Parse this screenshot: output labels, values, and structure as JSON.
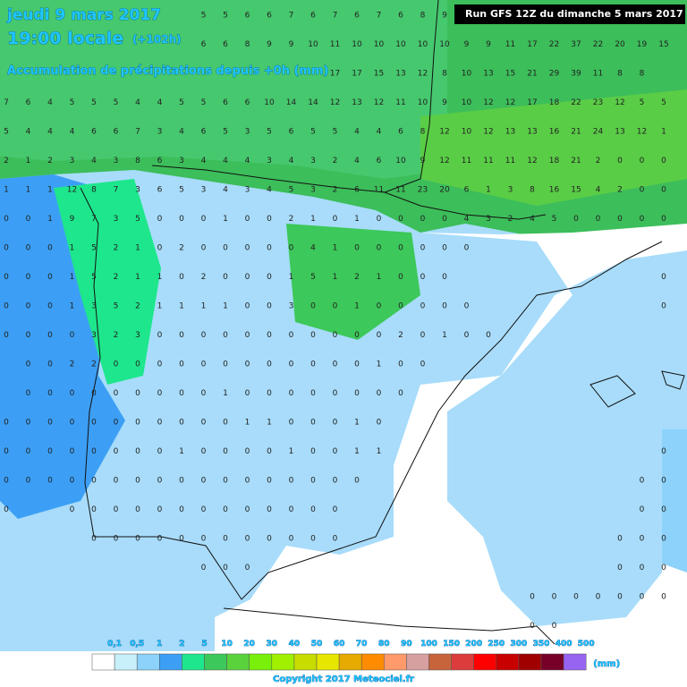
{
  "header": {
    "date": "jeudi 9 mars 2017",
    "time": "19:00 locale",
    "lead": "(+102h)",
    "subtitle": "Accumulation de précipitations depuis +0h (mm)",
    "run": "Run GFS 12Z du dimanche 5 mars 2017"
  },
  "grid_values": [
    [
      null,
      null,
      null,
      null,
      null,
      null,
      null,
      null,
      null,
      5,
      5,
      6,
      6,
      7,
      6,
      7,
      6,
      7,
      6,
      8,
      9,
      null,
      null,
      null,
      null,
      null,
      null,
      null,
      null,
      null,
      null
    ],
    [
      null,
      null,
      null,
      null,
      null,
      null,
      null,
      null,
      null,
      6,
      6,
      8,
      9,
      9,
      10,
      11,
      10,
      10,
      10,
      10,
      10,
      9,
      9,
      11,
      17,
      22,
      37,
      22,
      20,
      19,
      15
    ],
    [
      null,
      null,
      null,
      null,
      null,
      null,
      null,
      null,
      null,
      null,
      null,
      null,
      null,
      null,
      null,
      17,
      17,
      15,
      13,
      12,
      8,
      10,
      13,
      15,
      21,
      29,
      39,
      11,
      8,
      8,
      null
    ],
    [
      7,
      6,
      4,
      5,
      5,
      5,
      4,
      4,
      5,
      5,
      6,
      6,
      10,
      14,
      14,
      12,
      13,
      12,
      11,
      10,
      9,
      10,
      12,
      12,
      17,
      18,
      22,
      23,
      12,
      5,
      5
    ],
    [
      5,
      4,
      4,
      4,
      6,
      6,
      7,
      3,
      4,
      6,
      5,
      3,
      5,
      6,
      5,
      5,
      4,
      4,
      6,
      8,
      12,
      10,
      12,
      13,
      13,
      16,
      21,
      24,
      13,
      12,
      1
    ],
    [
      2,
      1,
      2,
      3,
      4,
      3,
      8,
      6,
      3,
      4,
      4,
      4,
      3,
      4,
      3,
      2,
      4,
      6,
      10,
      9,
      12,
      11,
      11,
      11,
      12,
      18,
      21,
      2,
      0,
      0,
      0
    ],
    [
      1,
      1,
      1,
      12,
      8,
      7,
      3,
      6,
      5,
      3,
      4,
      3,
      4,
      5,
      3,
      2,
      6,
      11,
      11,
      23,
      20,
      6,
      1,
      3,
      8,
      16,
      15,
      4,
      2,
      0,
      0
    ],
    [
      0,
      0,
      1,
      9,
      7,
      3,
      5,
      0,
      0,
      0,
      1,
      0,
      0,
      2,
      1,
      0,
      1,
      0,
      0,
      0,
      0,
      4,
      3,
      2,
      4,
      5,
      0,
      0,
      0,
      0,
      0
    ],
    [
      0,
      0,
      0,
      1,
      5,
      2,
      1,
      0,
      2,
      0,
      0,
      0,
      0,
      0,
      4,
      1,
      0,
      0,
      0,
      0,
      0,
      0,
      null,
      null,
      null,
      null,
      null,
      null,
      null,
      null,
      null
    ],
    [
      0,
      0,
      0,
      1,
      5,
      2,
      1,
      1,
      0,
      2,
      0,
      0,
      0,
      1,
      5,
      1,
      2,
      1,
      0,
      0,
      0,
      null,
      null,
      null,
      null,
      null,
      null,
      null,
      null,
      null,
      0
    ],
    [
      0,
      0,
      0,
      1,
      3,
      5,
      2,
      1,
      1,
      1,
      1,
      0,
      0,
      3,
      0,
      0,
      1,
      0,
      0,
      0,
      0,
      0,
      null,
      null,
      null,
      null,
      null,
      null,
      null,
      null,
      0
    ],
    [
      0,
      0,
      0,
      0,
      3,
      2,
      3,
      0,
      0,
      0,
      0,
      0,
      0,
      0,
      0,
      0,
      0,
      0,
      2,
      0,
      1,
      0,
      0,
      null,
      null,
      null,
      null,
      null,
      null,
      null,
      null
    ],
    [
      null,
      0,
      0,
      2,
      2,
      0,
      0,
      0,
      0,
      0,
      0,
      0,
      0,
      0,
      0,
      0,
      0,
      1,
      0,
      0,
      null,
      null,
      null,
      null,
      null,
      null,
      null,
      null,
      null,
      null,
      null
    ],
    [
      null,
      0,
      0,
      0,
      0,
      0,
      0,
      0,
      0,
      0,
      1,
      0,
      0,
      0,
      0,
      0,
      0,
      0,
      0,
      null,
      null,
      null,
      null,
      null,
      null,
      null,
      null,
      null,
      null,
      null,
      null
    ],
    [
      0,
      0,
      0,
      0,
      0,
      0,
      0,
      0,
      0,
      0,
      0,
      1,
      1,
      0,
      0,
      0,
      1,
      0,
      null,
      null,
      null,
      null,
      null,
      null,
      null,
      null,
      null,
      null,
      null,
      null,
      null
    ],
    [
      0,
      0,
      0,
      0,
      0,
      0,
      0,
      0,
      1,
      0,
      0,
      0,
      0,
      1,
      0,
      0,
      1,
      1,
      null,
      null,
      null,
      null,
      null,
      null,
      null,
      null,
      null,
      null,
      null,
      null,
      0
    ],
    [
      0,
      0,
      0,
      0,
      0,
      0,
      0,
      0,
      0,
      0,
      0,
      0,
      0,
      0,
      0,
      0,
      0,
      null,
      null,
      null,
      null,
      null,
      null,
      null,
      null,
      null,
      null,
      null,
      null,
      0,
      0
    ],
    [
      0,
      null,
      null,
      0,
      0,
      0,
      0,
      0,
      0,
      0,
      0,
      0,
      0,
      0,
      0,
      0,
      null,
      null,
      null,
      null,
      null,
      null,
      null,
      null,
      null,
      null,
      null,
      null,
      null,
      0,
      0
    ],
    [
      null,
      null,
      null,
      null,
      0,
      0,
      0,
      0,
      0,
      0,
      0,
      0,
      0,
      0,
      0,
      0,
      null,
      null,
      null,
      null,
      null,
      null,
      null,
      null,
      null,
      null,
      null,
      null,
      0,
      0,
      0
    ],
    [
      null,
      null,
      null,
      null,
      null,
      null,
      null,
      null,
      null,
      0,
      0,
      0,
      null,
      null,
      null,
      null,
      null,
      null,
      null,
      null,
      null,
      null,
      null,
      null,
      null,
      null,
      null,
      null,
      0,
      0,
      0
    ],
    [
      null,
      null,
      null,
      null,
      null,
      null,
      null,
      null,
      null,
      null,
      null,
      null,
      null,
      null,
      null,
      null,
      null,
      null,
      null,
      null,
      null,
      null,
      null,
      null,
      0,
      0,
      0,
      0,
      0,
      0,
      0
    ],
    [
      null,
      null,
      null,
      null,
      null,
      null,
      null,
      null,
      null,
      null,
      null,
      null,
      null,
      null,
      null,
      null,
      null,
      null,
      null,
      null,
      null,
      null,
      null,
      null,
      0,
      0,
      null,
      null,
      null,
      null,
      null
    ]
  ],
  "legend": {
    "labels": [
      "0,1",
      "0,5",
      "1",
      "2",
      "5",
      "10",
      "20",
      "30",
      "40",
      "50",
      "60",
      "70",
      "80",
      "90",
      "100",
      "150",
      "200",
      "250",
      "300",
      "350",
      "400",
      "500"
    ],
    "colors": [
      "#ffffff",
      "#c8f0fa",
      "#8cd2fa",
      "#3c9ff5",
      "#1ee68c",
      "#3cc85a",
      "#5ad23c",
      "#78f00a",
      "#a0f000",
      "#c8dc00",
      "#e6e600",
      "#e6aa00",
      "#ff8c00",
      "#ff9a6a",
      "#d7a0a0",
      "#c8643c",
      "#dc3c3c",
      "#ff0000",
      "#c80000",
      "#a00000",
      "#780028",
      "#9664f0"
    ],
    "unit": "(mm)"
  },
  "footer": {
    "copyright": "Copyright 2017 Meteociel.fr"
  }
}
